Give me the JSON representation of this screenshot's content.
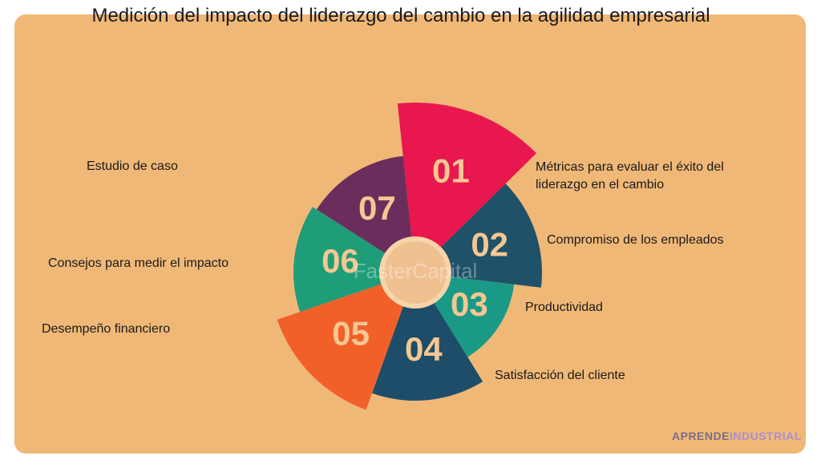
{
  "title": "Medición del impacto del liderazgo del cambio en la agilidad empresarial",
  "segments": [
    {
      "number": "01",
      "label": "Métricas para evaluar el éxito del liderazgo en el cambio"
    },
    {
      "number": "02",
      "label": "Compromiso de los empleados"
    },
    {
      "number": "03",
      "label": "Productividad"
    },
    {
      "number": "04",
      "label": "Satisfacción del cliente"
    },
    {
      "number": "05",
      "label": "Desempeño financiero"
    },
    {
      "number": "06",
      "label": "Consejos para medir el impacto"
    },
    {
      "number": "07",
      "label": "Estudio de caso"
    }
  ],
  "watermark": "FasterCapital",
  "brand": {
    "first": "APRENDE",
    "second": "INDUSTRIAL"
  }
}
